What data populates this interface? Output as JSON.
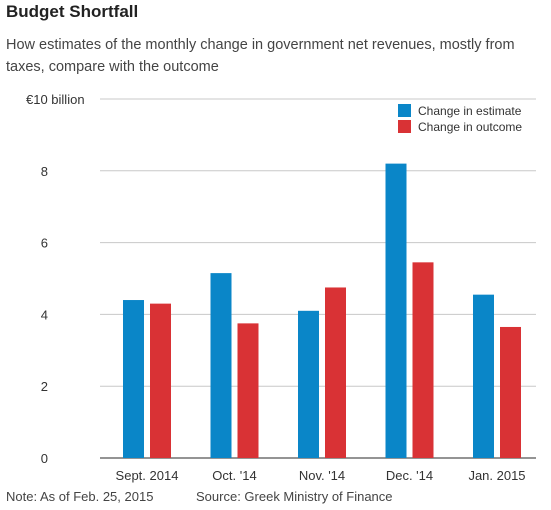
{
  "chart_data": {
    "type": "bar",
    "title": "Budget Shortfall",
    "subtitle": "How estimates of the monthly change in government net revenues, mostly from taxes, compare with the outcome",
    "categories": [
      "Sept. 2014",
      "Oct. '14",
      "Nov. '14",
      "Dec. '14",
      "Jan. 2015"
    ],
    "series": [
      {
        "name": "Change in estimate",
        "color": "#0a86c8",
        "values": [
          4.4,
          5.15,
          4.1,
          8.2,
          4.55
        ]
      },
      {
        "name": "Change in outcome",
        "color": "#d93235",
        "values": [
          4.3,
          3.75,
          4.75,
          5.45,
          3.65
        ]
      }
    ],
    "yticks": [
      "0",
      "2",
      "4",
      "6",
      "8",
      "€10 billion"
    ],
    "ylim": [
      0,
      10
    ],
    "grid": true,
    "legend": "top-right"
  },
  "footer": {
    "note": "Note: As of Feb. 25, 2015",
    "source": "Source: Greek Ministry of Finance"
  }
}
